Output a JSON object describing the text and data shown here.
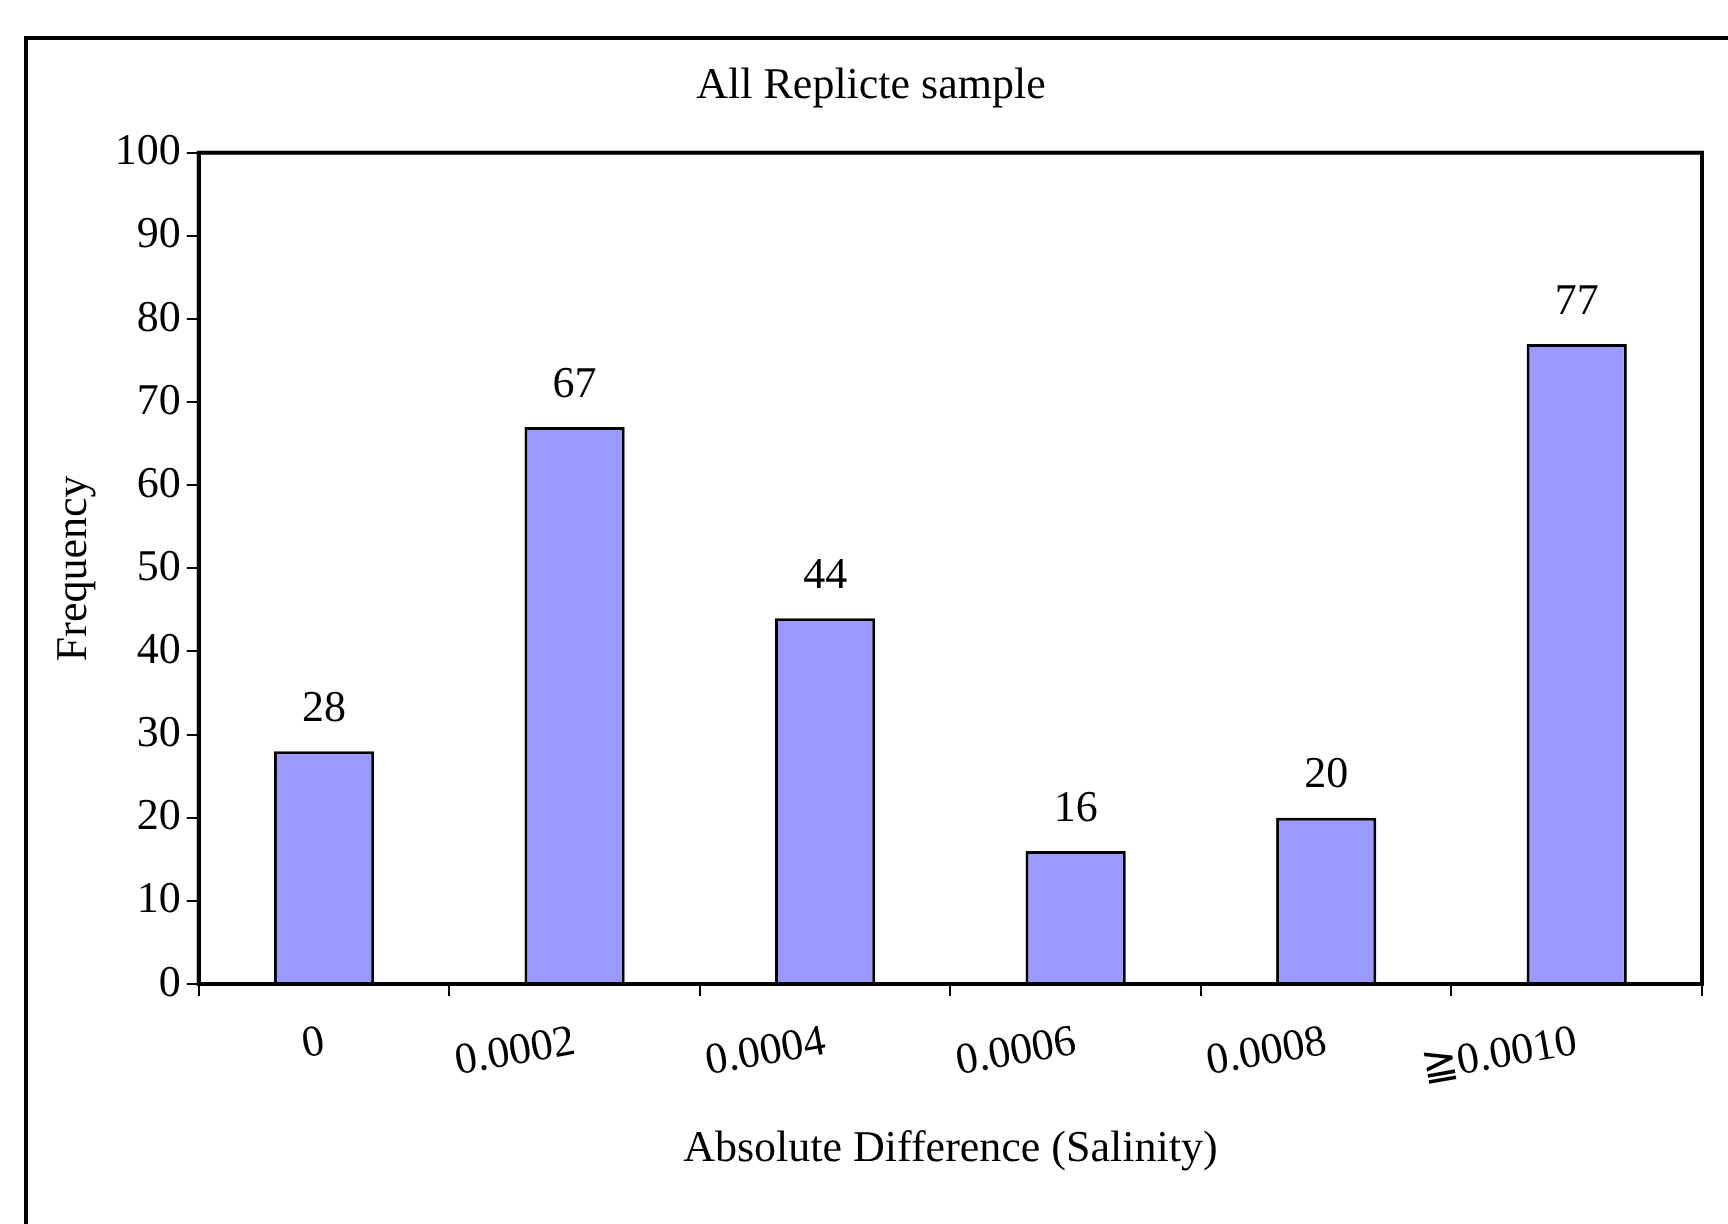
{
  "chart_data": {
    "type": "bar",
    "title": "All Replicte sample",
    "xlabel": "Absolute Difference (Salinity)",
    "ylabel": "Frequency",
    "categories": [
      "0",
      "0.0002",
      "0.0004",
      "0.0006",
      "0.0008",
      "≧0.0010"
    ],
    "values": [
      28,
      67,
      44,
      16,
      20,
      77
    ],
    "color": "#9999ff",
    "ylim": [
      0,
      100
    ],
    "yticks": [
      0,
      10,
      20,
      30,
      40,
      50,
      60,
      70,
      80,
      90,
      100
    ],
    "grid": false,
    "legend": false,
    "data_labels": true
  }
}
